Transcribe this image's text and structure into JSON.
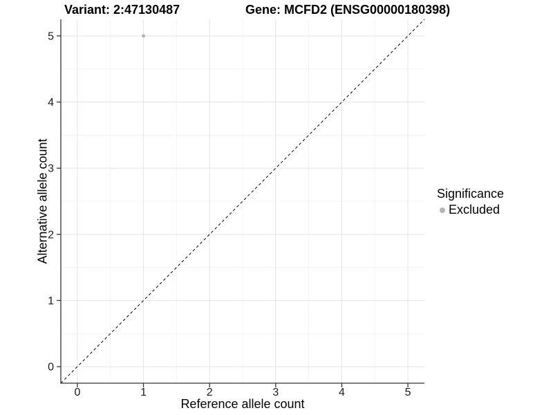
{
  "header": {
    "title_left": "Variant: 2:47130487",
    "title_right": "Gene: MCFD2 (ENSG00000180398)"
  },
  "chart_data": {
    "type": "scatter",
    "xlabel": "Reference allele count",
    "ylabel": "Alternative allele count",
    "xlim": [
      -0.25,
      5.25
    ],
    "ylim": [
      -0.25,
      5.25
    ],
    "xticks": [
      0,
      1,
      2,
      3,
      4,
      5
    ],
    "yticks": [
      0,
      1,
      2,
      3,
      4,
      5
    ],
    "minor_grid_step": 0.5,
    "grid": "major+minor",
    "points": [
      {
        "x": 1,
        "y": 5,
        "significance": "Excluded",
        "color": "#b5b5b5"
      }
    ],
    "identity_line": {
      "style": "dashed",
      "color": "#000000",
      "from": [
        -0.25,
        -0.25
      ],
      "to": [
        5.25,
        5.25
      ]
    },
    "legend": {
      "title": "Significance",
      "position": "right",
      "entries": [
        {
          "label": "Excluded",
          "color": "#b5b5b5"
        }
      ]
    },
    "colors": {
      "grid_major": "#e4e4e4",
      "grid_minor": "#f0f0f0",
      "axis": "#333333",
      "tick_text": "#1a1a1a",
      "background": "#ffffff"
    }
  }
}
